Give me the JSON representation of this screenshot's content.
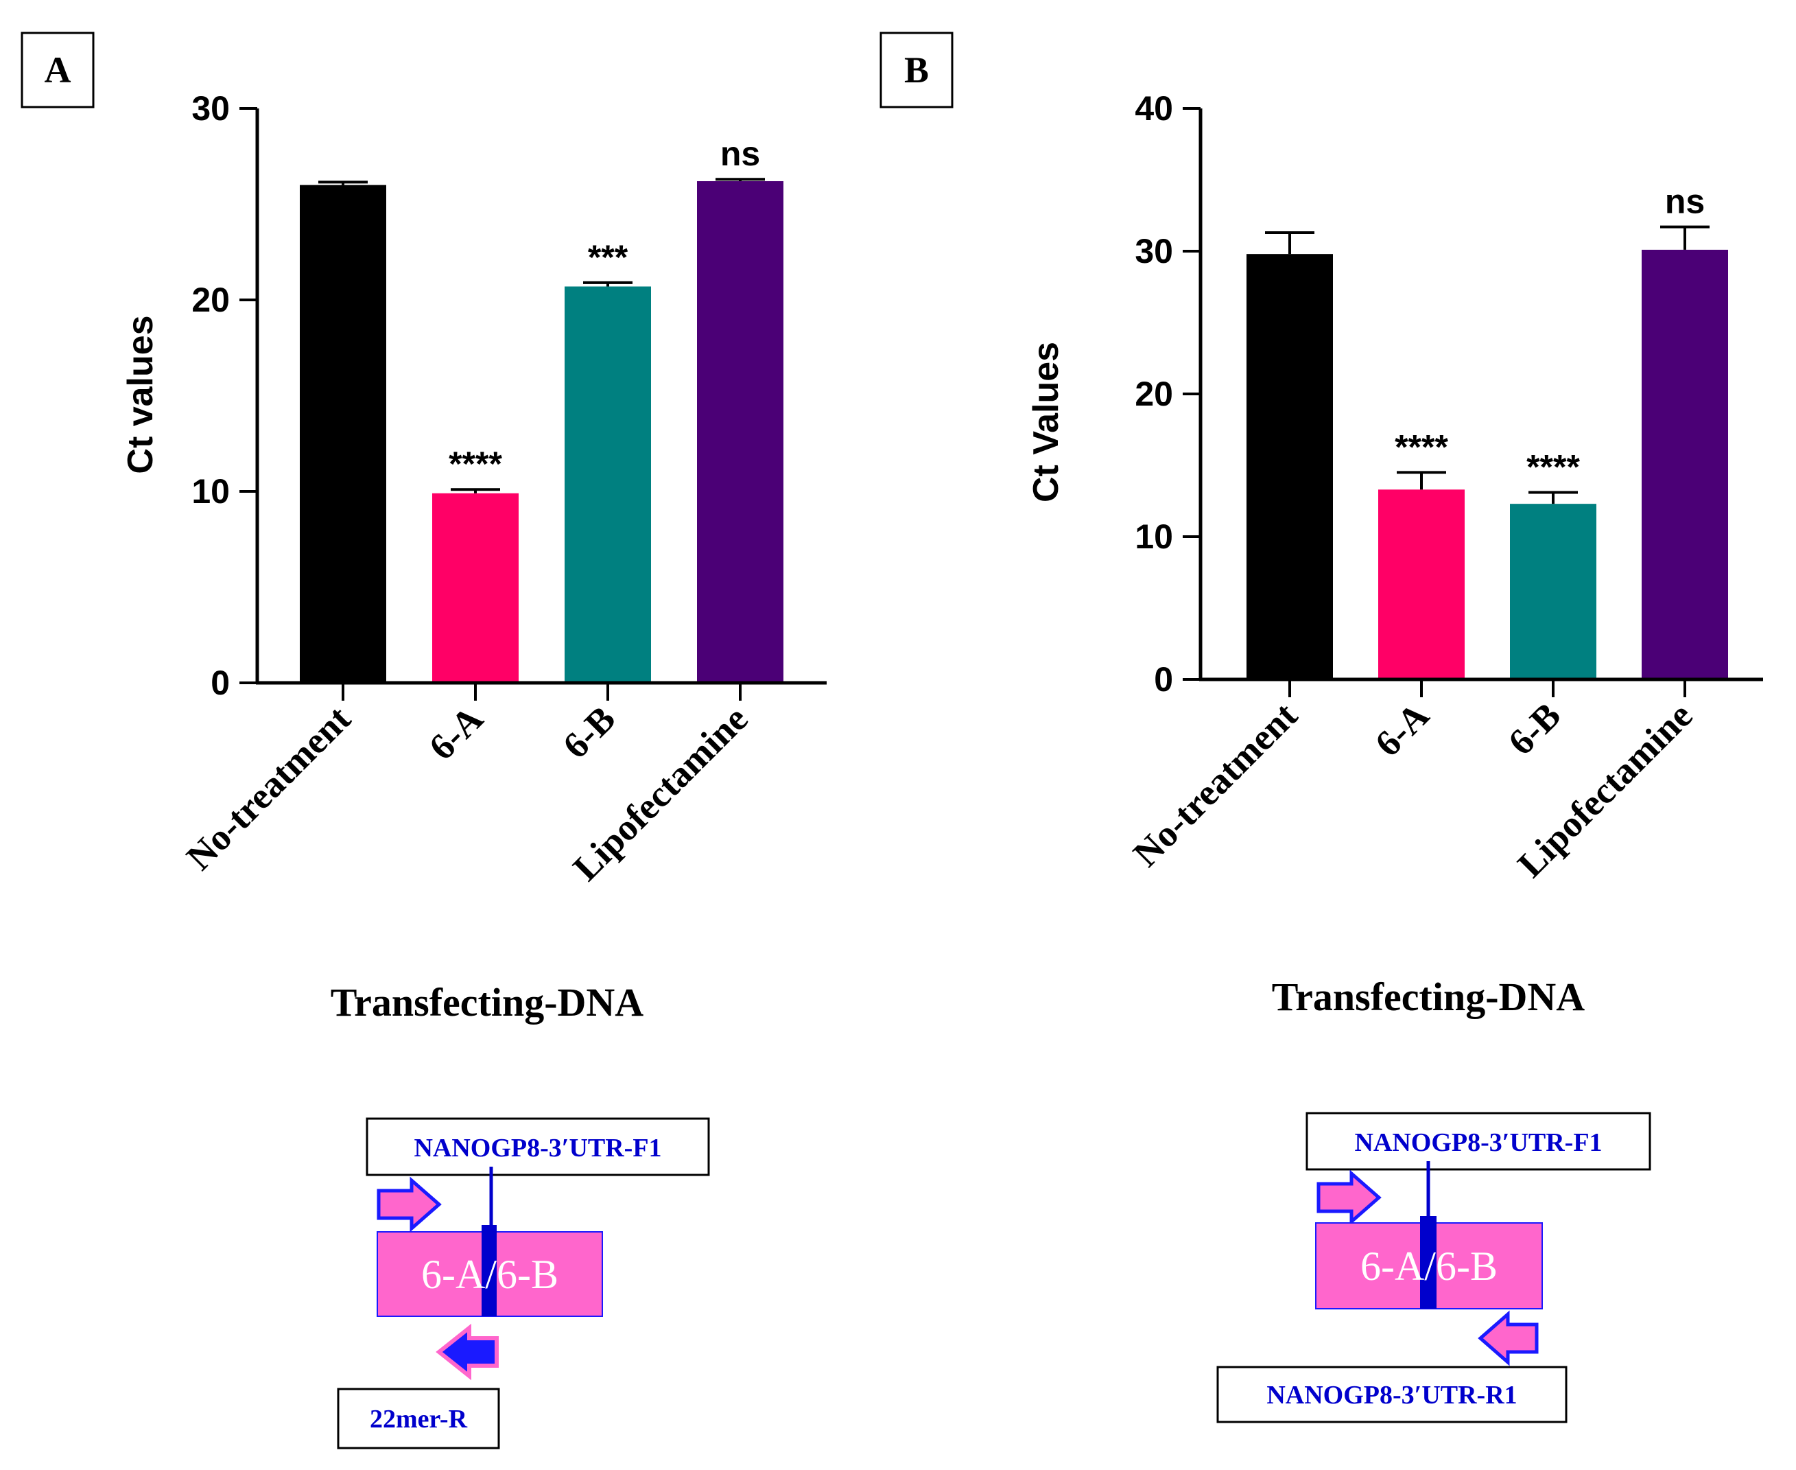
{
  "colors": {
    "no_treatment": "#000000",
    "six_a": "#ff0066",
    "six_b": "#008080",
    "lipofectamine": "#4b0076",
    "gene_box": "#ff66cc",
    "gene_box_text": "#ffffff",
    "primer_arrow": "#ff66cc",
    "primer_outline": "#1a1aff",
    "primer_label": "#0000cc",
    "probe": "#0000cc"
  },
  "chart_data": [
    {
      "panel_label": "A",
      "type": "bar",
      "title": "",
      "xlabel": "Transfecting-DNA",
      "ylabel": "Ct values",
      "ylim": [
        0,
        30
      ],
      "yticks": [
        "0",
        "10",
        "20",
        "30"
      ],
      "categories": [
        "No-treatment",
        "6-A",
        "6-B",
        "Lipofectamine"
      ],
      "values": [
        26.0,
        9.9,
        20.7,
        26.2
      ],
      "errors": [
        0.15,
        0.2,
        0.2,
        0.1
      ],
      "significance": [
        "",
        "****",
        "***",
        "ns"
      ],
      "colors": [
        "#000000",
        "#ff0066",
        "#008080",
        "#4b0076"
      ],
      "diagram": {
        "gene_label": "6-A/6-B",
        "forward_primer": "NANOGP8-3′UTR-F1",
        "reverse_primer": "22mer-R"
      }
    },
    {
      "panel_label": "B",
      "type": "bar",
      "title": "",
      "xlabel": "Transfecting-DNA",
      "ylabel": "Ct Values",
      "ylim": [
        0,
        40
      ],
      "yticks": [
        "0",
        "10",
        "20",
        "30",
        "40"
      ],
      "categories": [
        "No-treatment",
        "6-A",
        "6-B",
        "Lipofectamine"
      ],
      "values": [
        29.8,
        13.3,
        12.3,
        30.1
      ],
      "errors": [
        1.5,
        1.2,
        0.8,
        1.6
      ],
      "significance": [
        "",
        "****",
        "****",
        "ns"
      ],
      "colors": [
        "#000000",
        "#ff0066",
        "#008080",
        "#4b0076"
      ],
      "diagram": {
        "gene_label": "6-A/6-B",
        "forward_primer": "NANOGP8-3′UTR-F1",
        "reverse_primer": "NANOGP8-3′UTR-R1"
      }
    }
  ]
}
